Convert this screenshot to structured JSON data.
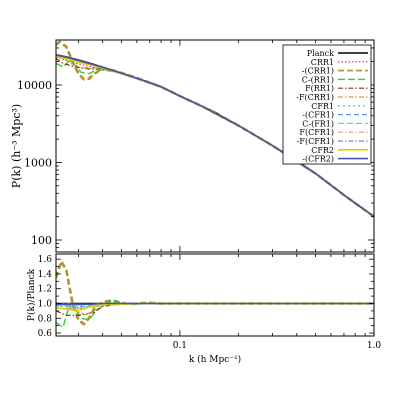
{
  "chart_data": [
    {
      "type": "line",
      "title": "",
      "xlabel": "",
      "ylabel": "P(k) (h⁻³ Mpc³)",
      "xscale": "log",
      "yscale": "log",
      "xlim": [
        0.023,
        1.0
      ],
      "ylim": [
        70,
        38000
      ],
      "grid": false,
      "legend_position": "top-right",
      "ytick_labels": [
        "100",
        "1000",
        "10000"
      ],
      "ytick_values": [
        100,
        1000,
        10000
      ],
      "series": [
        {
          "name": "Planck",
          "color": "#000000",
          "dash": "",
          "width": 1.6,
          "x": [
            0.023,
            0.026,
            0.03,
            0.035,
            0.04,
            0.05,
            0.06,
            0.07,
            0.08,
            0.1,
            0.13,
            0.15,
            0.2,
            0.3,
            0.4,
            0.5,
            0.7,
            1.0
          ],
          "y": [
            24500,
            23000,
            21000,
            18800,
            17000,
            14200,
            12200,
            10700,
            9500,
            7200,
            5300,
            4500,
            3000,
            1650,
            1050,
            720,
            380,
            200
          ]
        },
        {
          "name": "CRR1",
          "color": "#e03030",
          "dash": "1.5,2",
          "width": 1.2,
          "x": [
            0.023,
            0.025,
            0.028,
            0.032,
            0.036,
            0.04,
            0.05,
            0.06,
            0.08,
            0.1,
            0.13,
            0.2,
            0.3,
            0.5,
            0.7,
            1.0
          ],
          "y": [
            23000,
            21500,
            19500,
            18000,
            16800,
            16200,
            14000,
            12100,
            9400,
            7150,
            5280,
            2990,
            1640,
            715,
            378,
            199
          ]
        },
        {
          "name": "-(CRR1)",
          "color": "#b09030",
          "dash": "6,3",
          "width": 2.6,
          "x": [
            0.023,
            0.024,
            0.026,
            0.028,
            0.03,
            0.032,
            0.034,
            0.036,
            0.04,
            0.045,
            0.05,
            0.06,
            0.08,
            0.1,
            0.13,
            0.2,
            0.3,
            0.5,
            0.7,
            1.0
          ],
          "y": [
            33000,
            36000,
            31000,
            20000,
            14000,
            11800,
            12000,
            13800,
            16200,
            15500,
            14300,
            12300,
            9450,
            7200,
            5300,
            3000,
            1650,
            720,
            380,
            200
          ]
        },
        {
          "name": "C-(RR1)",
          "color": "#30d030",
          "dash": "7,3",
          "width": 1.4,
          "x": [
            0.023,
            0.025,
            0.027,
            0.029,
            0.031,
            0.034,
            0.037,
            0.04,
            0.045,
            0.05,
            0.06,
            0.08,
            0.1,
            0.13,
            0.2,
            0.3,
            0.5,
            0.7,
            1.0
          ],
          "y": [
            19000,
            17000,
            20500,
            17500,
            14500,
            14000,
            15500,
            15600,
            15000,
            13900,
            12000,
            9400,
            7150,
            5280,
            2990,
            1645,
            718,
            379,
            200
          ]
        },
        {
          "name": "F(RR1)",
          "color": "#8b2e1e",
          "dash": "5,2,1.5,2",
          "width": 1.2,
          "x": [
            0.023,
            0.025,
            0.028,
            0.031,
            0.035,
            0.04,
            0.05,
            0.06,
            0.08,
            0.1,
            0.13,
            0.2,
            0.3,
            0.5,
            0.7,
            1.0
          ],
          "y": [
            22000,
            19000,
            17500,
            16500,
            16000,
            16300,
            14100,
            12150,
            9420,
            7170,
            5290,
            2995,
            1647,
            719,
            379,
            200
          ]
        },
        {
          "name": "-F(CRR1)",
          "color": "#c8a040",
          "dash": "5,2,1.5,2",
          "width": 1.2,
          "x": [
            0.023,
            0.025,
            0.028,
            0.031,
            0.035,
            0.04,
            0.05,
            0.06,
            0.08,
            0.1,
            0.13,
            0.2,
            0.3,
            0.5,
            0.7,
            1.0
          ],
          "y": [
            25000,
            22000,
            18500,
            16800,
            16500,
            16500,
            14150,
            12180,
            9440,
            7180,
            5295,
            2997,
            1648,
            719,
            379,
            200
          ]
        },
        {
          "name": "CFR1",
          "color": "#40c0c0",
          "dash": "2,3",
          "width": 1.2,
          "x": [
            0.023,
            0.026,
            0.03,
            0.035,
            0.04,
            0.05,
            0.06,
            0.08,
            0.1,
            0.13,
            0.2,
            0.3,
            0.5,
            0.7,
            1.0
          ],
          "y": [
            23500,
            22000,
            20000,
            18000,
            16600,
            14000,
            12100,
            9420,
            7160,
            5285,
            2992,
            1646,
            719,
            379,
            200
          ]
        },
        {
          "name": "-(CFR1)",
          "color": "#50a0e0",
          "dash": "5,3",
          "width": 1.2,
          "x": [
            0.023,
            0.026,
            0.03,
            0.035,
            0.04,
            0.05,
            0.06,
            0.08,
            0.1,
            0.13,
            0.2,
            0.3,
            0.5,
            0.7,
            1.0
          ],
          "y": [
            24000,
            22500,
            20200,
            18300,
            16800,
            14100,
            12150,
            9440,
            7170,
            5290,
            2994,
            1647,
            719,
            379,
            200
          ]
        },
        {
          "name": "C-(FR1)",
          "color": "#60e0a0",
          "dash": "6,3",
          "width": 1.2,
          "x": [
            0.023,
            0.026,
            0.03,
            0.035,
            0.04,
            0.05,
            0.06,
            0.08,
            0.1,
            0.13,
            0.2,
            0.3,
            0.5,
            0.7,
            1.0
          ],
          "y": [
            23800,
            22200,
            19800,
            17900,
            16500,
            14000,
            12080,
            9410,
            7160,
            5283,
            2991,
            1645,
            718,
            379,
            200
          ]
        },
        {
          "name": "F(CFR1)",
          "color": "#e0a080",
          "dash": "5,2,1.5,2",
          "width": 1.2,
          "x": [
            0.023,
            0.026,
            0.03,
            0.035,
            0.04,
            0.05,
            0.06,
            0.08,
            0.1,
            0.13,
            0.2,
            0.3,
            0.5,
            0.7,
            1.0
          ],
          "y": [
            24200,
            22700,
            20600,
            18500,
            16900,
            14150,
            12170,
            9450,
            7175,
            5292,
            2995,
            1647,
            719,
            379,
            200
          ]
        },
        {
          "name": "-F(CFR1)",
          "color": "#8080e0",
          "dash": "5,2,1.5,2",
          "width": 1.2,
          "x": [
            0.023,
            0.026,
            0.03,
            0.035,
            0.04,
            0.05,
            0.06,
            0.08,
            0.1,
            0.13,
            0.2,
            0.3,
            0.5,
            0.7,
            1.0
          ],
          "y": [
            24400,
            22900,
            20800,
            18700,
            17000,
            14180,
            12190,
            9470,
            7185,
            5297,
            2997,
            1648,
            720,
            380,
            200
          ]
        },
        {
          "name": "CFR2",
          "color": "#d8d800",
          "dash": "",
          "width": 1.6,
          "x": [
            0.023,
            0.026,
            0.03,
            0.035,
            0.04,
            0.05,
            0.06,
            0.08,
            0.1,
            0.13,
            0.2,
            0.3,
            0.5,
            0.7,
            1.0
          ],
          "y": [
            23000,
            21800,
            19800,
            18000,
            16700,
            14050,
            12100,
            9400,
            7140,
            5275,
            2985,
            1643,
            717,
            378,
            199
          ]
        },
        {
          "name": "-(CFR2)",
          "color": "#5050b0",
          "dash": "",
          "width": 1.6,
          "x": [
            0.023,
            0.026,
            0.03,
            0.035,
            0.04,
            0.05,
            0.06,
            0.08,
            0.1,
            0.13,
            0.2,
            0.3,
            0.5,
            0.7,
            1.0
          ],
          "y": [
            24300,
            22800,
            20700,
            18600,
            16950,
            14170,
            12180,
            9460,
            7180,
            5295,
            2996,
            1648,
            720,
            380,
            200
          ]
        }
      ]
    },
    {
      "type": "line",
      "title": "",
      "xlabel": "k (h Mpc⁻¹)",
      "ylabel": "P(k)/Planck",
      "xscale": "log",
      "xlim": [
        0.023,
        1.0
      ],
      "ylim": [
        0.56,
        1.67
      ],
      "grid": false,
      "xtick_labels": [
        "0.1",
        "1.0"
      ],
      "xtick_values": [
        0.1,
        1.0
      ],
      "ytick_labels": [
        "0.6",
        "0.8",
        "1.0",
        "1.2",
        "1.4",
        "1.6"
      ],
      "ytick_values": [
        0.6,
        0.8,
        1.0,
        1.2,
        1.4,
        1.6
      ],
      "series": [
        {
          "name": "Planck",
          "color": "#000000",
          "dash": "",
          "width": 1.6,
          "x": [
            0.023,
            1.0
          ],
          "y": [
            1.0,
            1.0
          ]
        },
        {
          "name": "CRR1",
          "color": "#e03030",
          "dash": "1.5,2",
          "width": 1.2,
          "x": [
            0.023,
            0.026,
            0.03,
            0.034,
            0.038,
            0.042,
            0.05,
            0.06,
            0.08,
            0.1,
            1.0
          ],
          "y": [
            0.94,
            0.93,
            0.93,
            0.95,
            0.97,
            0.99,
            0.99,
            1.0,
            0.99,
            1.0,
            1.0
          ]
        },
        {
          "name": "-(CRR1)",
          "color": "#b09030",
          "dash": "6,3",
          "width": 2.6,
          "x": [
            0.023,
            0.0245,
            0.026,
            0.028,
            0.03,
            0.032,
            0.034,
            0.036,
            0.04,
            0.045,
            0.05,
            0.055,
            0.06,
            0.07,
            0.08,
            0.1,
            1.0
          ],
          "y": [
            1.35,
            1.57,
            1.45,
            1.0,
            0.78,
            0.72,
            0.8,
            0.92,
            1.02,
            1.04,
            1.01,
            0.99,
            1.0,
            1.01,
            1.0,
            1.0,
            1.0
          ]
        },
        {
          "name": "C-(RR1)",
          "color": "#30d030",
          "dash": "7,3",
          "width": 1.4,
          "x": [
            0.023,
            0.025,
            0.027,
            0.029,
            0.031,
            0.034,
            0.037,
            0.04,
            0.045,
            0.05,
            0.06,
            0.08,
            0.1,
            1.0
          ],
          "y": [
            0.74,
            0.68,
            0.98,
            0.92,
            0.8,
            0.78,
            0.9,
            0.96,
            1.05,
            1.0,
            1.0,
            1.0,
            1.0,
            1.0
          ]
        },
        {
          "name": "F(RR1)",
          "color": "#8b2e1e",
          "dash": "5,2,1.5,2",
          "width": 1.2,
          "x": [
            0.023,
            0.026,
            0.03,
            0.033,
            0.036,
            0.04,
            0.045,
            0.05,
            0.06,
            0.08,
            0.1,
            1.0
          ],
          "y": [
            0.9,
            0.84,
            0.84,
            0.86,
            0.88,
            0.96,
            0.98,
            0.99,
            1.0,
            1.0,
            1.0,
            1.0
          ]
        },
        {
          "name": "-F(CRR1)",
          "color": "#c8a040",
          "dash": "5,2,1.5,2",
          "width": 1.2,
          "x": [
            0.023,
            0.026,
            0.03,
            0.033,
            0.036,
            0.04,
            0.045,
            0.05,
            0.06,
            0.08,
            0.1,
            1.0
          ],
          "y": [
            1.02,
            0.96,
            0.88,
            0.85,
            0.9,
            0.97,
            1.0,
            1.0,
            1.0,
            1.0,
            1.0,
            1.0
          ]
        },
        {
          "name": "CFR1",
          "color": "#40c0c0",
          "dash": "2,3",
          "width": 1.2,
          "x": [
            0.023,
            0.026,
            0.03,
            0.035,
            0.04,
            0.05,
            0.06,
            0.08,
            0.1,
            1.0
          ],
          "y": [
            0.96,
            0.96,
            0.95,
            0.96,
            0.98,
            0.99,
            1.0,
            1.0,
            1.0,
            1.0
          ]
        },
        {
          "name": "-(CFR1)",
          "color": "#50a0e0",
          "dash": "5,3",
          "width": 1.2,
          "x": [
            0.023,
            0.026,
            0.03,
            0.035,
            0.04,
            0.05,
            0.06,
            0.08,
            0.1,
            1.0
          ],
          "y": [
            0.98,
            0.98,
            0.96,
            0.97,
            0.99,
            1.0,
            1.0,
            1.0,
            1.0,
            1.0
          ]
        },
        {
          "name": "C-(FR1)",
          "color": "#60e0a0",
          "dash": "6,3",
          "width": 1.2,
          "x": [
            0.023,
            0.026,
            0.03,
            0.035,
            0.04,
            0.05,
            0.06,
            0.08,
            0.1,
            1.0
          ],
          "y": [
            0.97,
            0.96,
            0.94,
            0.95,
            0.97,
            0.99,
            0.99,
            1.0,
            1.0,
            1.0
          ]
        },
        {
          "name": "F(CFR1)",
          "color": "#e0a080",
          "dash": "5,2,1.5,2",
          "width": 1.2,
          "x": [
            0.023,
            0.026,
            0.03,
            0.035,
            0.04,
            0.05,
            0.06,
            0.08,
            0.1,
            1.0
          ],
          "y": [
            0.99,
            0.99,
            0.98,
            0.98,
            0.99,
            1.0,
            1.0,
            1.0,
            1.0,
            1.0
          ]
        },
        {
          "name": "-F(CFR1)",
          "color": "#8080e0",
          "dash": "5,2,1.5,2",
          "width": 1.2,
          "x": [
            0.023,
            0.026,
            0.03,
            0.035,
            0.04,
            0.05,
            0.06,
            0.08,
            0.1,
            1.0
          ],
          "y": [
            1.0,
            1.0,
            0.99,
            0.99,
            1.0,
            1.0,
            1.0,
            1.0,
            1.0,
            1.0
          ]
        },
        {
          "name": "CFR2",
          "color": "#d8d800",
          "dash": "",
          "width": 1.6,
          "x": [
            0.023,
            0.025,
            0.028,
            0.03,
            0.033,
            0.036,
            0.04,
            0.045,
            0.05,
            0.06,
            0.08,
            0.1,
            1.0
          ],
          "y": [
            0.94,
            0.93,
            0.91,
            0.9,
            0.94,
            0.97,
            0.99,
            0.99,
            0.99,
            1.0,
            1.0,
            1.0,
            1.0
          ]
        },
        {
          "name": "-(CFR2)",
          "color": "#5050b0",
          "dash": "",
          "width": 1.6,
          "x": [
            0.023,
            0.026,
            0.03,
            0.035,
            0.04,
            0.05,
            0.06,
            0.08,
            0.1,
            1.0
          ],
          "y": [
            0.99,
            0.99,
            0.99,
            0.99,
            1.0,
            1.0,
            1.0,
            1.0,
            1.0,
            1.0
          ]
        }
      ]
    }
  ]
}
